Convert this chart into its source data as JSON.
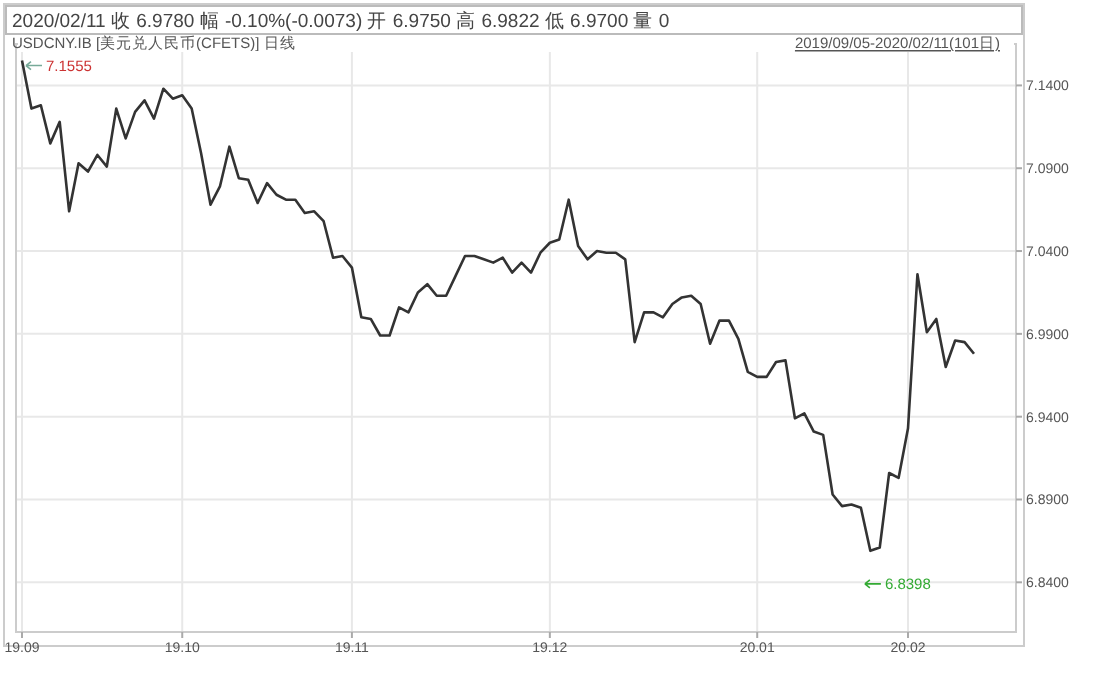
{
  "chart_data": {
    "type": "line",
    "title": "2020/02/11 收 6.9780 幅 -0.10%(-0.0073) 开 6.9750 高 6.9822 低 6.9700 量 0",
    "subtitle": "USDCNY.IB [美元兑人民币(CFETS)] 日线",
    "annotations": [
      "2019/09/05-2020/02/11(101日)",
      "7.1555",
      "6.8398"
    ],
    "categories": [
      "19.09",
      null,
      null,
      null,
      null,
      null,
      null,
      null,
      null,
      null,
      null,
      null,
      null,
      null,
      null,
      null,
      null,
      "19.10",
      null,
      null,
      null,
      null,
      null,
      null,
      null,
      null,
      null,
      null,
      null,
      null,
      null,
      null,
      null,
      null,
      null,
      "19.11",
      null,
      null,
      null,
      null,
      null,
      null,
      null,
      null,
      null,
      null,
      null,
      null,
      null,
      null,
      null,
      null,
      null,
      null,
      null,
      null,
      "19.12",
      null,
      null,
      null,
      null,
      null,
      null,
      null,
      null,
      null,
      null,
      null,
      null,
      null,
      null,
      null,
      null,
      null,
      null,
      null,
      null,
      null,
      "20.01",
      null,
      null,
      null,
      null,
      null,
      null,
      null,
      null,
      null,
      null,
      null,
      null,
      null,
      null,
      null,
      "20.02",
      null,
      null,
      null,
      null,
      null,
      null,
      null
    ],
    "series": [
      {
        "color": "#333333",
        "values": [
          7.155,
          7.126,
          7.128,
          7.105,
          7.118,
          7.064,
          7.093,
          7.088,
          7.098,
          7.091,
          7.126,
          7.108,
          7.124,
          7.131,
          7.12,
          7.138,
          7.132,
          7.134,
          7.126,
          7.099,
          7.068,
          7.079,
          7.103,
          7.084,
          7.083,
          7.069,
          7.081,
          7.074,
          7.071,
          7.071,
          7.063,
          7.064,
          7.058,
          7.036,
          7.037,
          7.03,
          7.0,
          6.999,
          6.989,
          6.989,
          7.006,
          7.003,
          7.015,
          7.02,
          7.013,
          7.013,
          7.025,
          7.037,
          7.037,
          7.035,
          7.033,
          7.036,
          7.027,
          7.033,
          7.027,
          7.039,
          7.045,
          7.047,
          7.071,
          7.043,
          7.035,
          7.04,
          7.039,
          7.039,
          7.035,
          6.985,
          7.003,
          7.003,
          7.0,
          7.008,
          7.012,
          7.013,
          7.008,
          6.984,
          6.998,
          6.998,
          6.987,
          6.967,
          6.964,
          6.964,
          6.973,
          6.974,
          6.939,
          6.942,
          6.931,
          6.929,
          6.893,
          6.886,
          6.887,
          6.885,
          6.859,
          6.861,
          6.906,
          6.903,
          6.933,
          7.026,
          6.991,
          6.999,
          6.97,
          6.986,
          6.985,
          6.978
        ]
      }
    ],
    "ylim": [
      6.81,
      7.165
    ],
    "yticks": [
      {
        "value": 6.84,
        "label": "6.8400"
      },
      {
        "value": 6.89,
        "label": "6.8900"
      },
      {
        "value": 6.94,
        "label": "6.9400"
      },
      {
        "value": 6.99,
        "label": "6.9900"
      },
      {
        "value": 7.04,
        "label": "7.0400"
      },
      {
        "value": 7.09,
        "label": "7.0900"
      },
      {
        "value": 7.14,
        "label": "7.1400"
      }
    ],
    "grid": true,
    "line_style": "solid"
  }
}
